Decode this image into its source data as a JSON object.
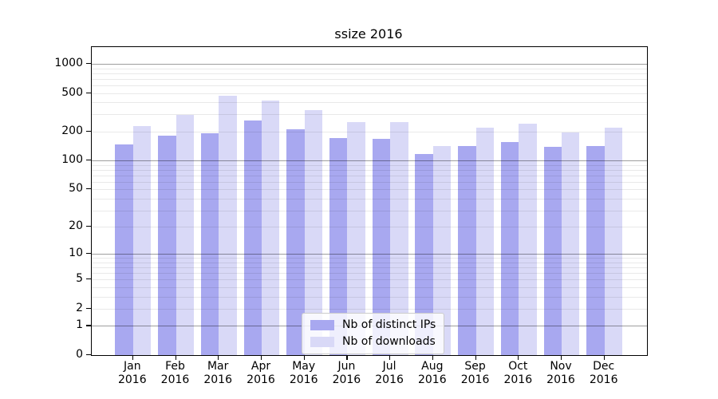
{
  "title": "ssize 2016",
  "axis": {
    "y_tick_labels": [
      "0",
      "1",
      "2",
      "5",
      "10",
      "20",
      "50",
      "100",
      "200",
      "500",
      "1000"
    ],
    "x_year_label": "2016"
  },
  "legend": {
    "items": [
      {
        "label": "Nb of distinct IPs",
        "color": "#a8a8f0"
      },
      {
        "label": "Nb of downloads",
        "color": "#d9d9f7"
      }
    ]
  },
  "chart_data": {
    "type": "bar",
    "title": "ssize 2016",
    "categories": [
      "Jan",
      "Feb",
      "Mar",
      "Apr",
      "May",
      "Jun",
      "Jul",
      "Aug",
      "Sep",
      "Oct",
      "Nov",
      "Dec"
    ],
    "year": "2016",
    "series": [
      {
        "name": "Nb of distinct IPs",
        "color": "#a8a8f0",
        "values": [
          147,
          181,
          193,
          260,
          212,
          171,
          168,
          117,
          141,
          156,
          140,
          142
        ]
      },
      {
        "name": "Nb of downloads",
        "color": "#d9d9f7",
        "values": [
          228,
          299,
          465,
          420,
          331,
          251,
          251,
          141,
          219,
          241,
          195,
          219
        ]
      }
    ],
    "xlabel": "",
    "ylabel": "",
    "y_scale": "log1p",
    "y_ticks": [
      0,
      1,
      2,
      5,
      10,
      20,
      50,
      100,
      200,
      500,
      1000
    ],
    "ylim": [
      0,
      1487
    ],
    "grid": true,
    "legend_position": "lower center",
    "colors": {
      "major_grid": "#a6a6a6",
      "minor_grid": "#e9e9e9",
      "axis": "#000000",
      "background": "#ffffff"
    }
  }
}
